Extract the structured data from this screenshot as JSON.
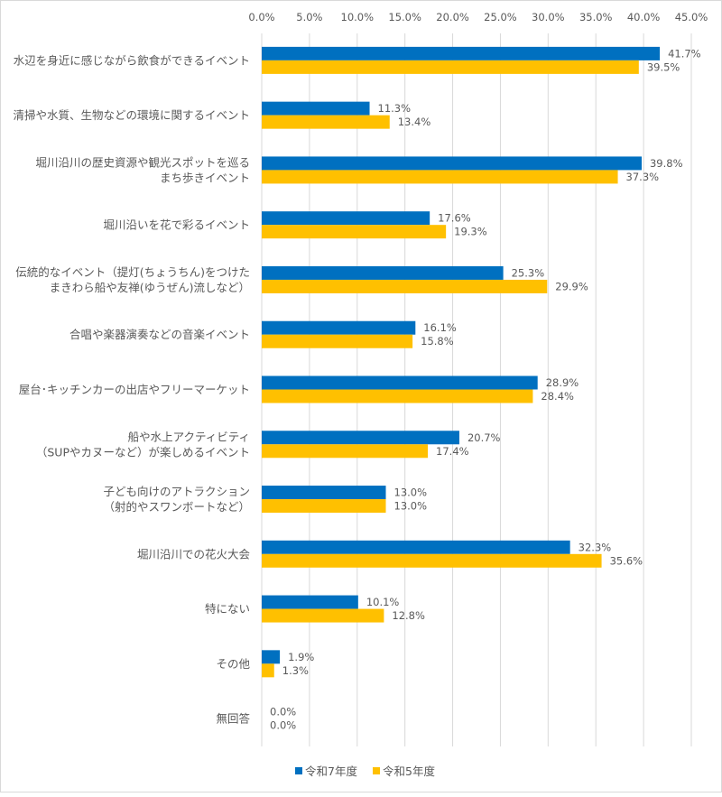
{
  "chart_data": {
    "type": "bar",
    "orientation": "horizontal",
    "categories": [
      [
        "水辺を身近に感じながら飲食ができるイベント"
      ],
      [
        "清掃や水質、生物などの環境に関するイベント"
      ],
      [
        "堀川沿川の歴史資源や観光スポットを巡る",
        "まち歩きイベント"
      ],
      [
        "堀川沿いを花で彩るイベント"
      ],
      [
        "伝統的なイベント（提灯(ちょうちん)をつけた",
        "まきわら船や友禅(ゆうぜん)流しなど）"
      ],
      [
        "合唱や楽器演奏などの音楽イベント"
      ],
      [
        "屋台･キッチンカーの出店やフリーマーケット"
      ],
      [
        "船や水上アクティビティ",
        "（SUPやカヌーなど）が楽しめるイベント"
      ],
      [
        "子ども向けのアトラクション",
        "（射的やスワンボートなど）"
      ],
      [
        "堀川沿川での花火大会"
      ],
      [
        "特にない"
      ],
      [
        "その他"
      ],
      [
        "無回答"
      ]
    ],
    "series": [
      {
        "name": "令和7年度",
        "color": "#0070C0",
        "values": [
          41.7,
          11.3,
          39.8,
          17.6,
          25.3,
          16.1,
          28.9,
          20.7,
          13.0,
          32.3,
          10.1,
          1.9,
          0.0
        ]
      },
      {
        "name": "令和5年度",
        "color": "#FFC000",
        "values": [
          39.5,
          13.4,
          37.3,
          19.3,
          29.9,
          15.8,
          28.4,
          17.4,
          13.0,
          35.6,
          12.8,
          1.3,
          0.0
        ]
      }
    ],
    "xlim": [
      0,
      45
    ],
    "x_ticks": [
      "0.0%",
      "5.0%",
      "10.0%",
      "15.0%",
      "20.0%",
      "25.0%",
      "30.0%",
      "35.0%",
      "40.0%",
      "45.0%"
    ],
    "x_axis_position": "top",
    "value_format": "percent-1dp",
    "grid": true,
    "legend_position": "bottom"
  }
}
